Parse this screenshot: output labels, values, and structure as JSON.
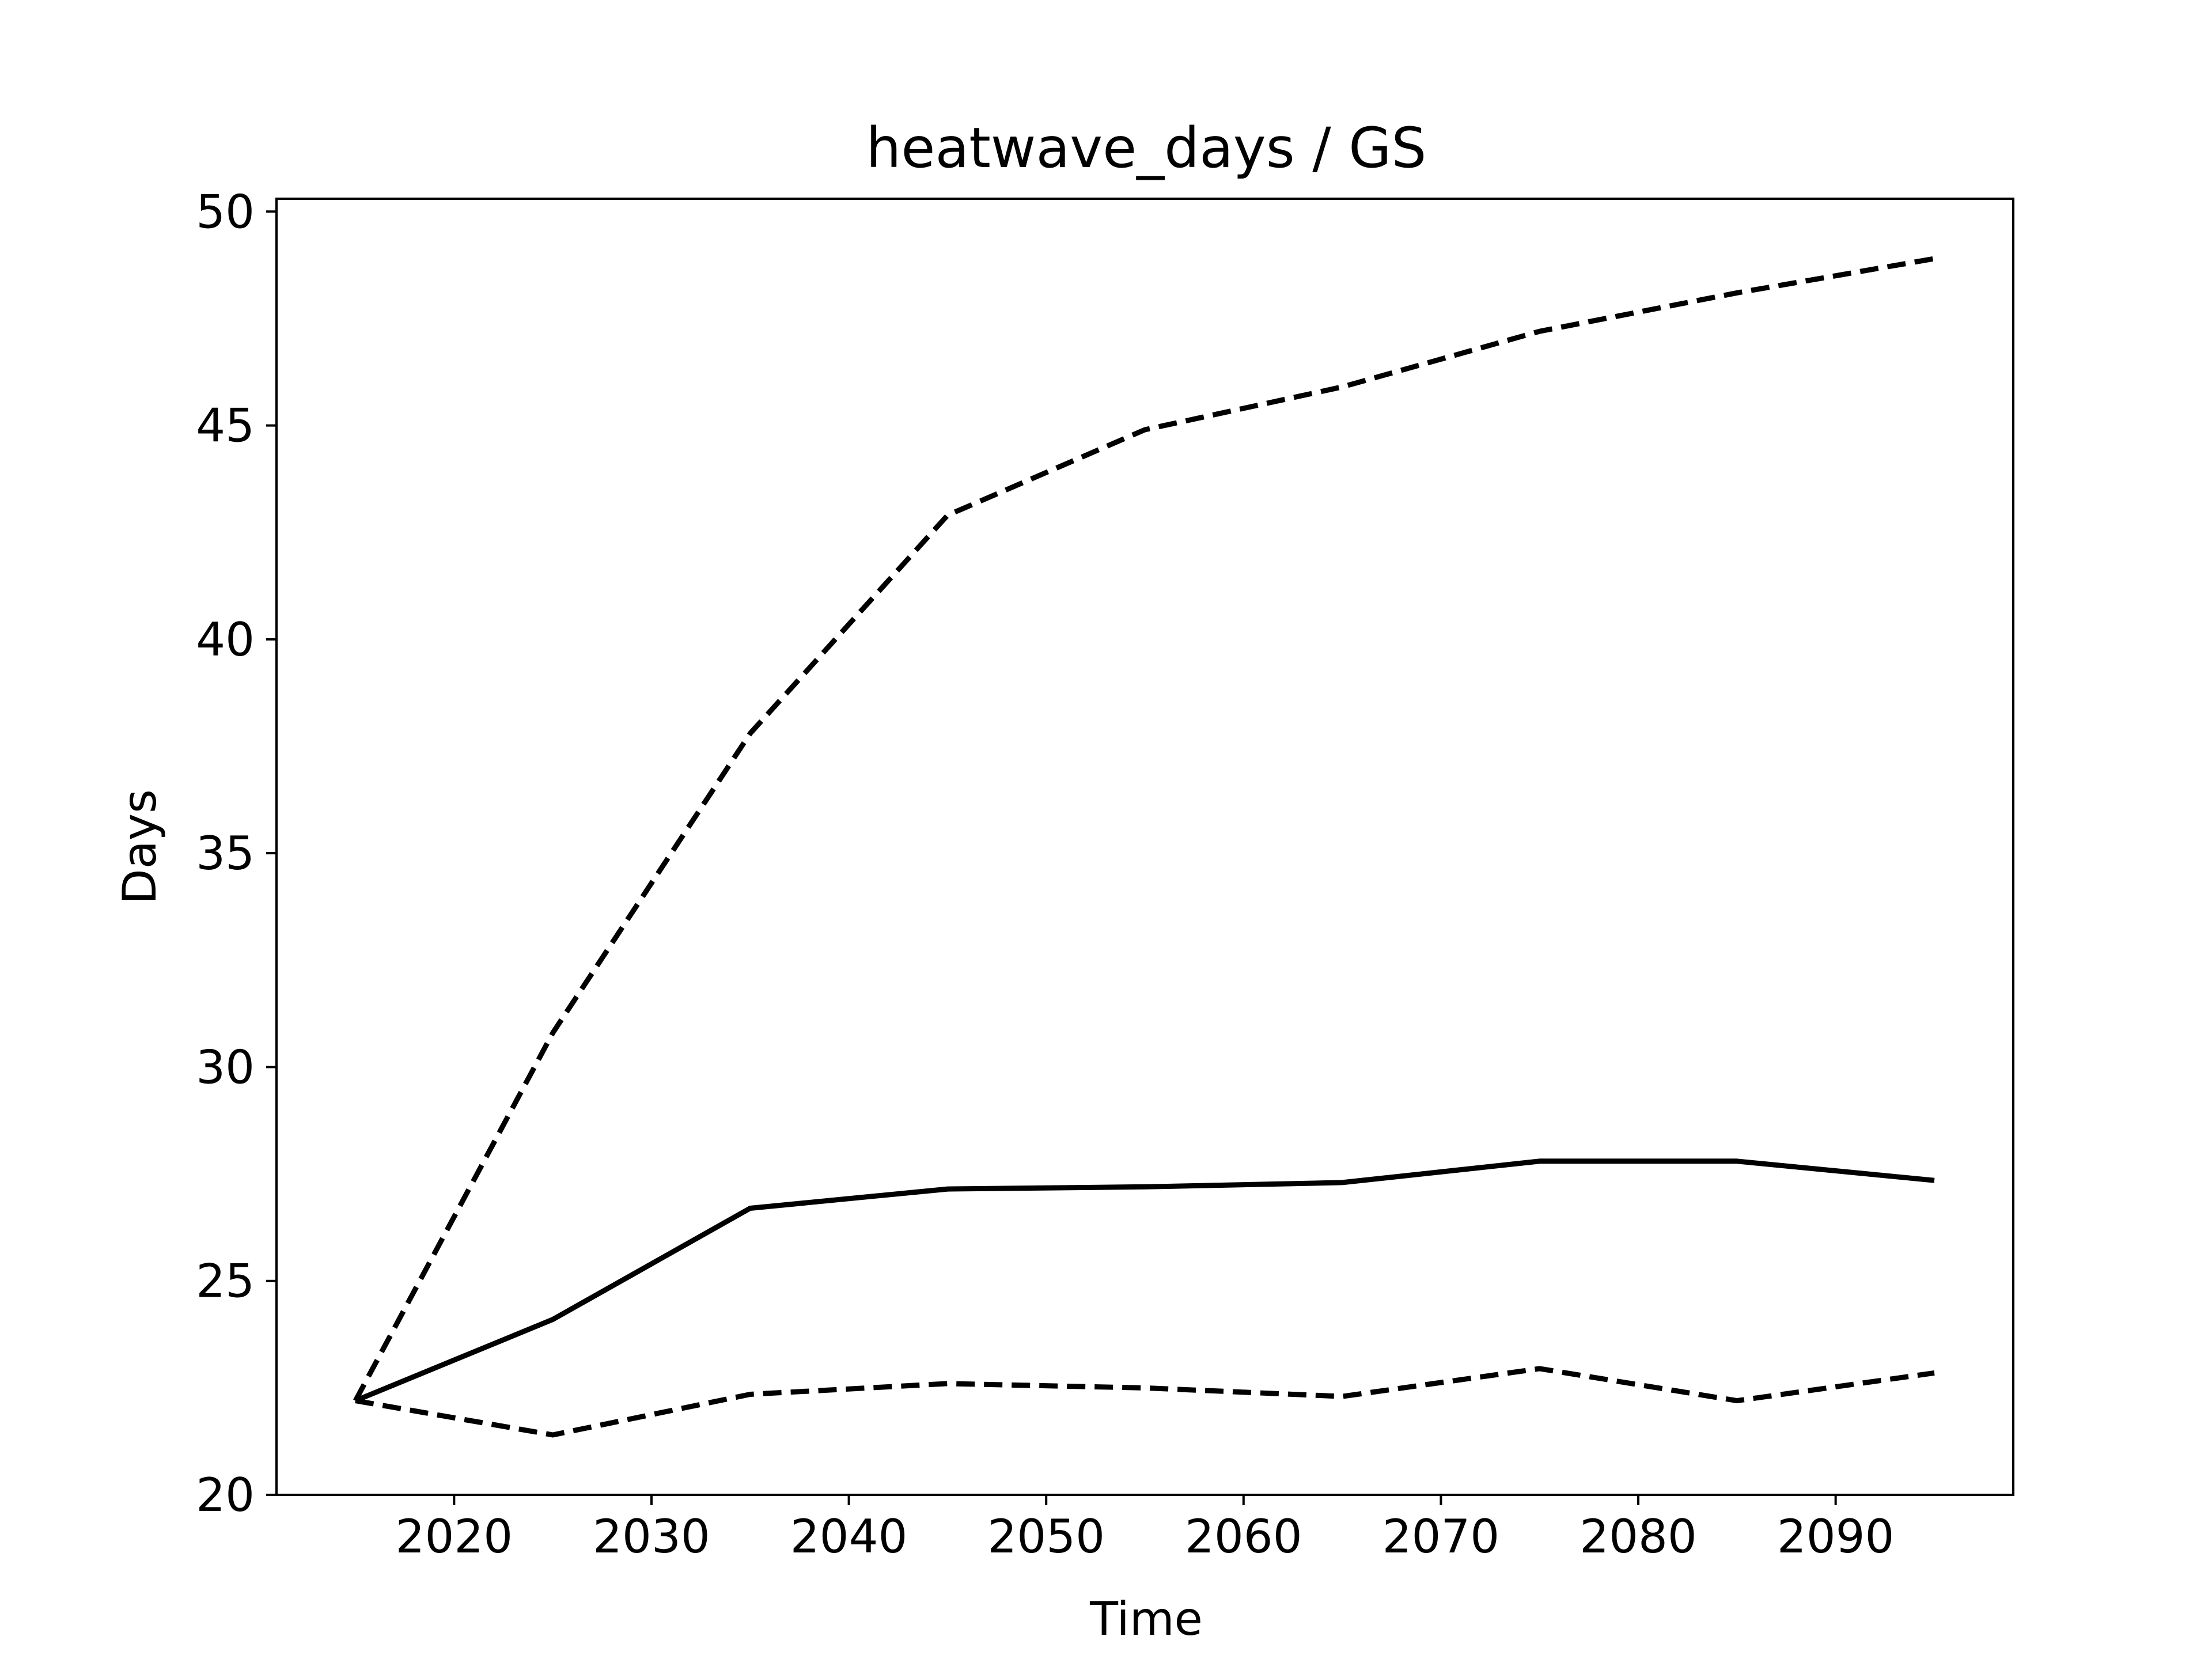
{
  "chart_data": {
    "type": "line",
    "title": "heatwave_days / GS",
    "xlabel": "Time",
    "ylabel": "Days",
    "xlim": [
      2011,
      2099
    ],
    "ylim": [
      20,
      50.3
    ],
    "xticks": [
      2020,
      2030,
      2040,
      2050,
      2060,
      2070,
      2080,
      2090
    ],
    "yticks": [
      20,
      25,
      30,
      35,
      40,
      45,
      50
    ],
    "grid": false,
    "legend": "none",
    "x": [
      2015,
      2025,
      2035,
      2045,
      2055,
      2065,
      2075,
      2085,
      2095
    ],
    "series": [
      {
        "style": "dashed",
        "color": "#000000",
        "values": [
          22.2,
          30.8,
          37.8,
          42.9,
          44.9,
          45.9,
          47.2,
          48.1,
          48.9
        ]
      },
      {
        "style": "solid",
        "color": "#000000",
        "values": [
          22.2,
          24.1,
          26.7,
          27.15,
          27.2,
          27.3,
          27.8,
          27.8,
          27.35
        ]
      },
      {
        "style": "dashed",
        "color": "#000000",
        "values": [
          22.2,
          21.4,
          22.35,
          22.6,
          22.5,
          22.3,
          22.95,
          22.2,
          22.85
        ]
      }
    ]
  }
}
